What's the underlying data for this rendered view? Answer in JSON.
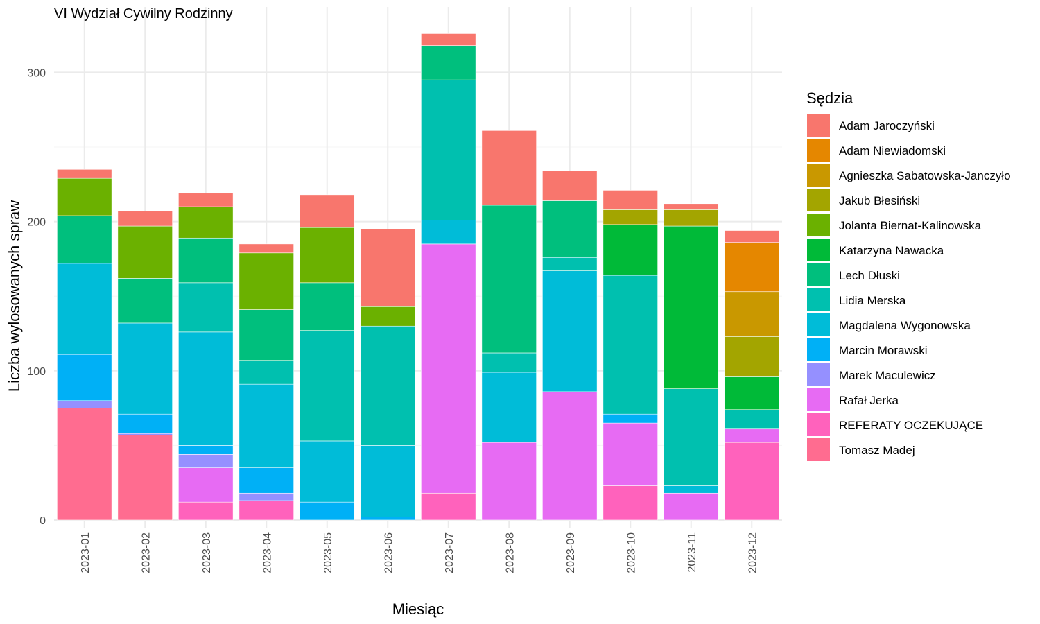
{
  "chart_data": {
    "type": "bar",
    "stacked": true,
    "title": "VI Wydział Cywilny Rodzinny",
    "xlabel": "Miesiąc",
    "ylabel": "Liczba wylosowanych spraw",
    "ylim": [
      0,
      330
    ],
    "y_ticks": [
      0,
      100,
      200,
      300
    ],
    "grid": true,
    "legend_title": "Sędzia",
    "legend_position": "right",
    "categories": [
      "2023-01",
      "2023-02",
      "2023-03",
      "2023-04",
      "2023-05",
      "2023-06",
      "2023-07",
      "2023-08",
      "2023-09",
      "2023-10",
      "2023-11",
      "2023-12"
    ],
    "stack_order_bottom_to_top": [
      "Tomasz Madej",
      "REFERATY OCZEKUJĄCE",
      "Rafał Jerka",
      "Marek Maculewicz",
      "Marcin Morawski",
      "Magdalena Wygonowska",
      "Lidia Merska",
      "Lech Dłuski",
      "Katarzyna Nawacka",
      "Jolanta Biernat-Kalinowska",
      "Jakub Błesiński",
      "Agnieszka Sabatowska-Janczyło",
      "Adam Niewiadomski",
      "Adam Jaroczyński"
    ],
    "series": [
      {
        "name": "Adam Jaroczyński",
        "color": "#F8766D",
        "values": [
          6,
          10,
          9,
          6,
          22,
          52,
          8,
          50,
          20,
          13,
          4,
          8
        ]
      },
      {
        "name": "Adam Niewiadomski",
        "color": "#E58700",
        "values": [
          0,
          0,
          0,
          0,
          0,
          0,
          0,
          0,
          0,
          0,
          0,
          33
        ]
      },
      {
        "name": "Agnieszka Sabatowska-Janczyło",
        "color": "#C99800",
        "values": [
          0,
          0,
          0,
          0,
          0,
          0,
          0,
          0,
          0,
          0,
          0,
          30
        ]
      },
      {
        "name": "Jakub Błesiński",
        "color": "#A3A500",
        "values": [
          0,
          0,
          0,
          0,
          0,
          0,
          0,
          0,
          0,
          10,
          11,
          27
        ]
      },
      {
        "name": "Jolanta Biernat-Kalinowska",
        "color": "#6BB100",
        "values": [
          25,
          35,
          21,
          38,
          37,
          13,
          0,
          0,
          0,
          0,
          0,
          0
        ]
      },
      {
        "name": "Katarzyna Nawacka",
        "color": "#00BA38",
        "values": [
          0,
          0,
          0,
          0,
          0,
          0,
          0,
          0,
          0,
          34,
          109,
          22
        ]
      },
      {
        "name": "Lech Dłuski",
        "color": "#00BF7D",
        "values": [
          32,
          30,
          30,
          34,
          32,
          0,
          23,
          99,
          38,
          0,
          0,
          0
        ]
      },
      {
        "name": "Lidia Merska",
        "color": "#00C0AF",
        "values": [
          0,
          0,
          33,
          16,
          74,
          80,
          94,
          13,
          9,
          93,
          65,
          13
        ]
      },
      {
        "name": "Magdalena Wygonowska",
        "color": "#00BCD8",
        "values": [
          61,
          61,
          76,
          56,
          41,
          48,
          16,
          47,
          81,
          0,
          5,
          0
        ]
      },
      {
        "name": "Marcin Morawski",
        "color": "#00B0F6",
        "values": [
          31,
          13,
          6,
          17,
          12,
          2,
          0,
          0,
          0,
          6,
          0,
          0
        ]
      },
      {
        "name": "Marek Maculewicz",
        "color": "#9590FF",
        "values": [
          5,
          1,
          9,
          5,
          0,
          0,
          0,
          0,
          0,
          0,
          0,
          0
        ]
      },
      {
        "name": "Rafał Jerka",
        "color": "#E76BF3",
        "values": [
          0,
          0,
          23,
          0,
          0,
          0,
          167,
          52,
          86,
          42,
          18,
          9
        ]
      },
      {
        "name": "REFERATY OCZEKUJĄCE",
        "color": "#FF62BC",
        "values": [
          0,
          0,
          12,
          13,
          0,
          0,
          18,
          0,
          0,
          23,
          0,
          52
        ]
      },
      {
        "name": "Tomasz Madej",
        "color": "#FF6C90",
        "values": [
          75,
          57,
          0,
          0,
          0,
          0,
          0,
          0,
          0,
          0,
          0,
          0
        ]
      }
    ]
  }
}
